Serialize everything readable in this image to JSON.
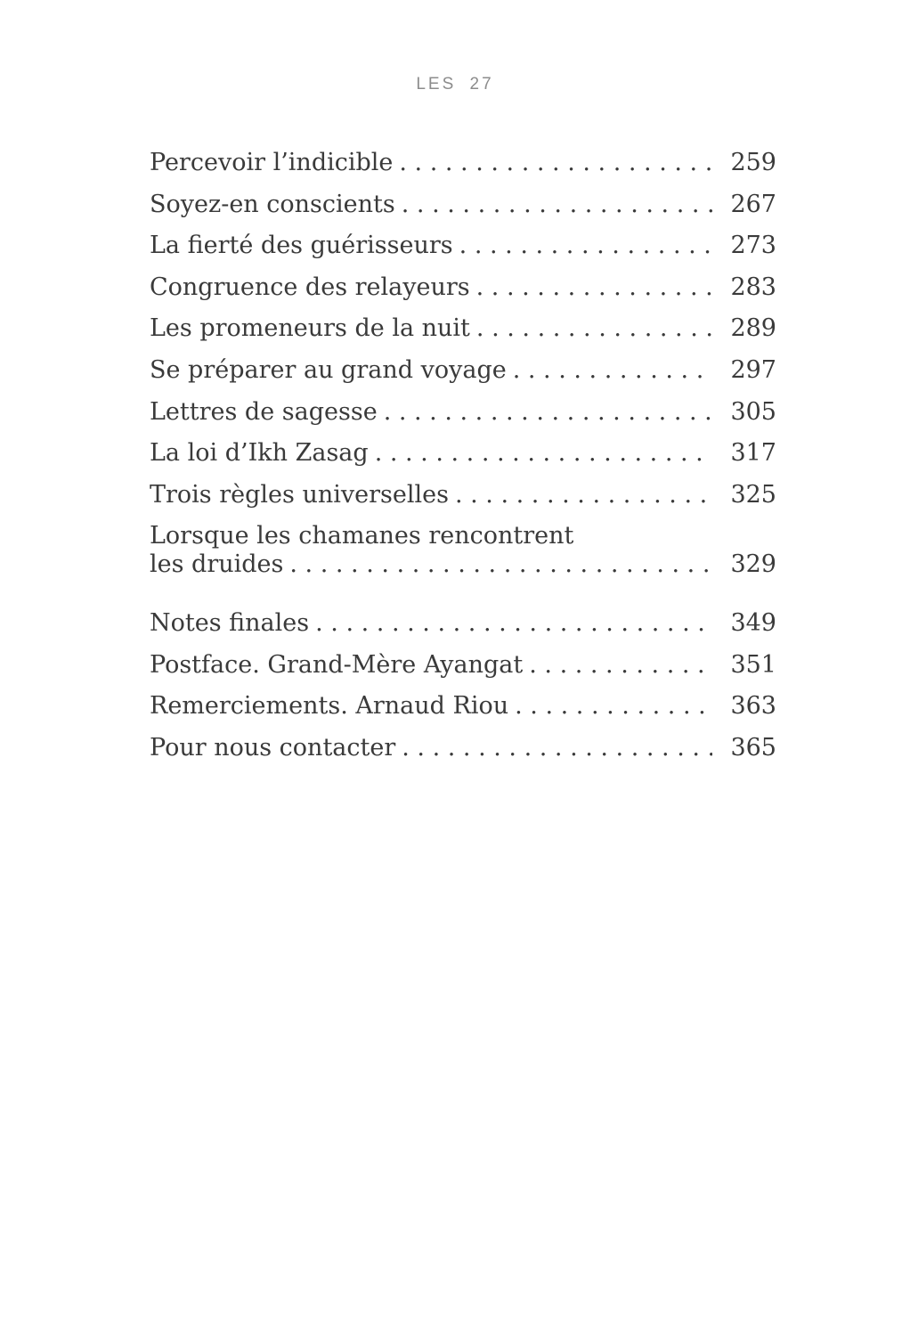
{
  "page_header": {
    "running_title": "LES 27"
  },
  "toc": {
    "entries": [
      {
        "title": "Percevoir l’indicible",
        "page": "259"
      },
      {
        "title": "Soyez-en conscients",
        "page": "267"
      },
      {
        "title": "La fierté des guérisseurs",
        "page": "273"
      },
      {
        "title": "Congruence des relayeurs",
        "page": "283"
      },
      {
        "title": "Les promeneurs de la nuit",
        "page": "289"
      },
      {
        "title": "Se préparer au grand voyage",
        "page": "297"
      },
      {
        "title": "Lettres de sagesse",
        "page": "305"
      },
      {
        "title": "La loi d’Ikh Zasag",
        "page": "317"
      },
      {
        "title": "Trois règles universelles",
        "page": "325"
      },
      {
        "title_line1": "Lorsque les chamanes rencontrent",
        "title_line2": "les druides",
        "page": "329"
      }
    ],
    "back_matter": [
      {
        "title": "Notes finales",
        "page": "349"
      },
      {
        "title": "Postface. Grand-Mère Ayangat",
        "page": "351"
      },
      {
        "title": "Remerciements. Arnaud Riou",
        "page": "363"
      },
      {
        "title": "Pour nous contacter",
        "page": "365"
      }
    ]
  },
  "colors": {
    "background": "#ffffff",
    "body_text": "#3a3a3a",
    "header_text": "#8c8c8c"
  }
}
